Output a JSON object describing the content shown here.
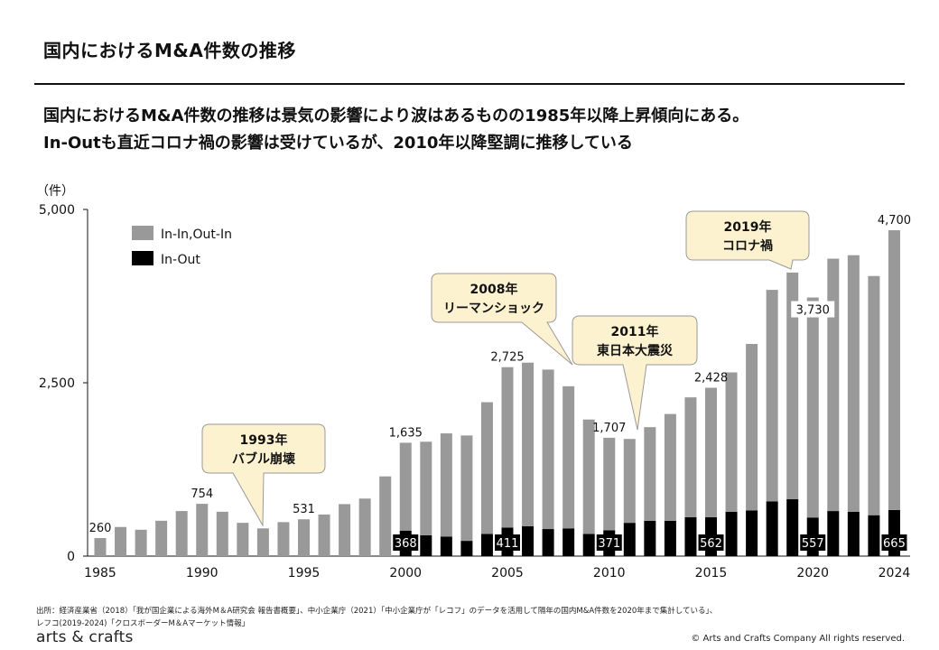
{
  "header": {
    "title": "国内におけるM&A件数の推移",
    "summary_line1": "国内におけるM&A件数の推移は景気の影響により波はあるものの1985年以降上昇傾向にある。",
    "summary_line2": "In-Outも直近コロナ禍の影響は受けているが、2010年以降堅調に推移している"
  },
  "chart_data": {
    "type": "bar",
    "stacked": true,
    "ylabel": "（件）",
    "ylim": [
      0,
      5000
    ],
    "yticks": [
      "0",
      "2,500",
      "5,000"
    ],
    "ytick_values": [
      0,
      2500,
      5000
    ],
    "x": [
      1985,
      1986,
      1987,
      1988,
      1989,
      1990,
      1991,
      1992,
      1993,
      1994,
      1995,
      1996,
      1997,
      1998,
      1999,
      2000,
      2001,
      2002,
      2003,
      2004,
      2005,
      2006,
      2007,
      2008,
      2009,
      2010,
      2011,
      2012,
      2013,
      2014,
      2015,
      2016,
      2017,
      2018,
      2019,
      2020,
      2021,
      2022,
      2023,
      2024
    ],
    "xticks": [
      "1985",
      "1990",
      "1995",
      "2000",
      "2005",
      "2010",
      "2015",
      "2020",
      "2024"
    ],
    "xtick_values": [
      1985,
      1990,
      1995,
      2000,
      2005,
      2010,
      2015,
      2020,
      2024
    ],
    "legend_position": "top-left",
    "series": [
      {
        "name": "In-In,Out-In",
        "color": "#999999",
        "values": [
          260,
          420,
          380,
          510,
          650,
          754,
          640,
          480,
          400,
          490,
          531,
          600,
          750,
          830,
          1150,
          1267,
          1350,
          1490,
          1520,
          1900,
          2314,
          2360,
          2300,
          2050,
          1650,
          1336,
          1210,
          1350,
          1540,
          1730,
          1866,
          2010,
          2400,
          3050,
          3270,
          3173,
          3640,
          3700,
          3450,
          4035
        ]
      },
      {
        "name": "In-Out",
        "color": "#000000",
        "values": [
          0,
          0,
          0,
          0,
          0,
          0,
          0,
          0,
          0,
          0,
          0,
          0,
          0,
          0,
          0,
          368,
          300,
          280,
          220,
          320,
          411,
          430,
          390,
          400,
          320,
          371,
          480,
          510,
          510,
          560,
          562,
          640,
          660,
          790,
          820,
          557,
          650,
          640,
          590,
          665
        ]
      }
    ],
    "total_labels": [
      {
        "year": 1985,
        "text": "260"
      },
      {
        "year": 1990,
        "text": "754"
      },
      {
        "year": 1995,
        "text": "531"
      },
      {
        "year": 2000,
        "text": "1,635"
      },
      {
        "year": 2005,
        "text": "2,725"
      },
      {
        "year": 2010,
        "text": "1,707"
      },
      {
        "year": 2015,
        "text": "2,428"
      },
      {
        "year": 2020,
        "text": "3,730"
      },
      {
        "year": 2024,
        "text": "4,700"
      }
    ],
    "inout_labels": [
      {
        "year": 2000,
        "text": "368"
      },
      {
        "year": 2005,
        "text": "411"
      },
      {
        "year": 2010,
        "text": "371"
      },
      {
        "year": 2015,
        "text": "562"
      },
      {
        "year": 2020,
        "text": "557"
      },
      {
        "year": 2024,
        "text": "665"
      }
    ],
    "annotations": [
      {
        "year_label": "1993年",
        "event": "バブル崩壊",
        "target_year": 1993
      },
      {
        "year_label": "2008年",
        "event": "リーマンショック",
        "target_year": 2008
      },
      {
        "year_label": "2011年",
        "event": "東日本大震災",
        "target_year": 2011
      },
      {
        "year_label": "2019年",
        "event": "コロナ禍",
        "target_year": 2019
      }
    ],
    "annotation_fill": "#fdf2d0",
    "annotation_stroke": "#999999"
  },
  "footer": {
    "source_line1": "出所：経済産業省（2018）「我が国企業による海外M＆A研究会 報告書概要」、中小企業庁（2021）「中小企業庁が「レコフ」のデータを活用して隔年の国内M&A件数を2020年まで集計している」、",
    "source_line2": "レフコ(2019-2024)「クロスボーダーM＆Aマーケット情報」",
    "logo": "arts & crafts",
    "copyright": "© Arts and Crafts Company All rights reserved."
  }
}
